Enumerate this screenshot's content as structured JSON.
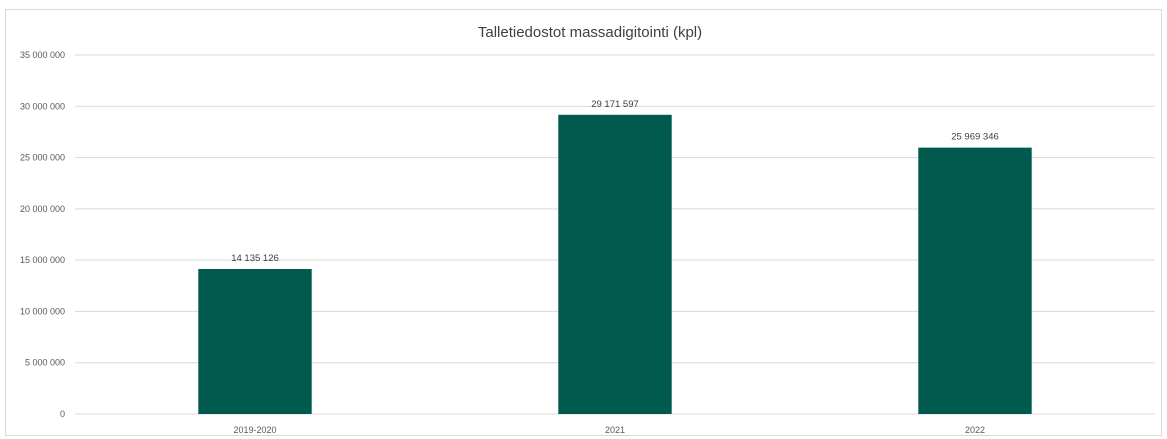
{
  "chart_data": {
    "type": "bar",
    "title": "Talletiedostot  massadigitointi (kpl)",
    "xlabel": "",
    "ylabel": "",
    "categories": [
      "2019-2020",
      "2021",
      "2022"
    ],
    "values": [
      14135126,
      29171597,
      25969346
    ],
    "value_labels": [
      "14 135 126",
      "29 171 597",
      "25 969 346"
    ],
    "ylim": [
      0,
      35000000
    ],
    "y_ticks": [
      0,
      5000000,
      10000000,
      15000000,
      20000000,
      25000000,
      30000000,
      35000000
    ],
    "y_tick_labels": [
      "0",
      "5 000 000",
      "10 000 000",
      "15 000 000",
      "20 000 000",
      "25 000 000",
      "30 000 000",
      "35 000 000"
    ],
    "grid": true,
    "legend": "none",
    "bar_color": "#005a4e",
    "grid_color": "#d9d9d9"
  }
}
